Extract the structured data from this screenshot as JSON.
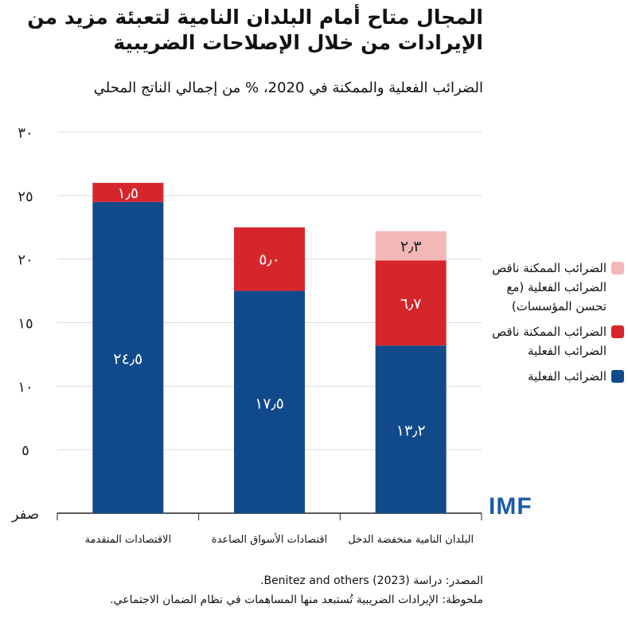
{
  "title": "المجال متاح أمام البلدان النامية لتعبئة مزيد من الإيرادات من خلال الإصلاحات الضريبية",
  "subtitle": "الضرائب الفعلية والممكنة في 2020، % من إجمالي الناتج المحلي",
  "source": "المصدر: دراسة (2023) Benitez and others.",
  "note": "ملحوظة: الإيرادات الضريبية تُستبعد منها المساهمات في نظام الضمان الاجتماعي.",
  "logo": "IMF",
  "colors": {
    "actual": "#114a8b",
    "potential": "#d7262b",
    "institutions": "#f3b7b7",
    "logo": "#1d5ba8"
  },
  "chart_data": {
    "type": "bar",
    "stacked": true,
    "title": "المجال متاح أمام البلدان النامية لتعبئة مزيد من الإيرادات من خلال الإصلاحات الضريبية",
    "ylim": [
      0,
      30
    ],
    "yticks": [
      0,
      5,
      10,
      15,
      20,
      25,
      30
    ],
    "ytick_labels": [
      "صفر",
      "٥",
      "١٠",
      "١٥",
      "٢٠",
      "٢٥",
      "٣٠"
    ],
    "grid": true,
    "legend_position": "right",
    "categories": [
      "الاقتصادات المتقدمة",
      "اقتصادات الأسواق الصاعدة",
      "البلدان النامية منخفضة الدخل"
    ],
    "series": [
      {
        "name": "الضرائب الفعلية",
        "color": "#114a8b",
        "values": [
          24.5,
          17.5,
          13.2
        ],
        "labels": [
          "٢٤٫٥",
          "١٧٫٥",
          "١٣٫٢"
        ]
      },
      {
        "name": "الضرائب الممكنة ناقص الضرائب الفعلية",
        "color": "#d7262b",
        "values": [
          1.5,
          5.0,
          6.7
        ],
        "labels": [
          "١٫٥",
          "٥٫٠",
          "٦٫٧"
        ]
      },
      {
        "name": "الضرائب الممكنة ناقص الضرائب الفعلية (مع تحسن المؤسسات)",
        "color": "#f3b7b7",
        "values": [
          null,
          null,
          2.3
        ],
        "labels": [
          "",
          "",
          "٢٫٣"
        ]
      }
    ]
  }
}
